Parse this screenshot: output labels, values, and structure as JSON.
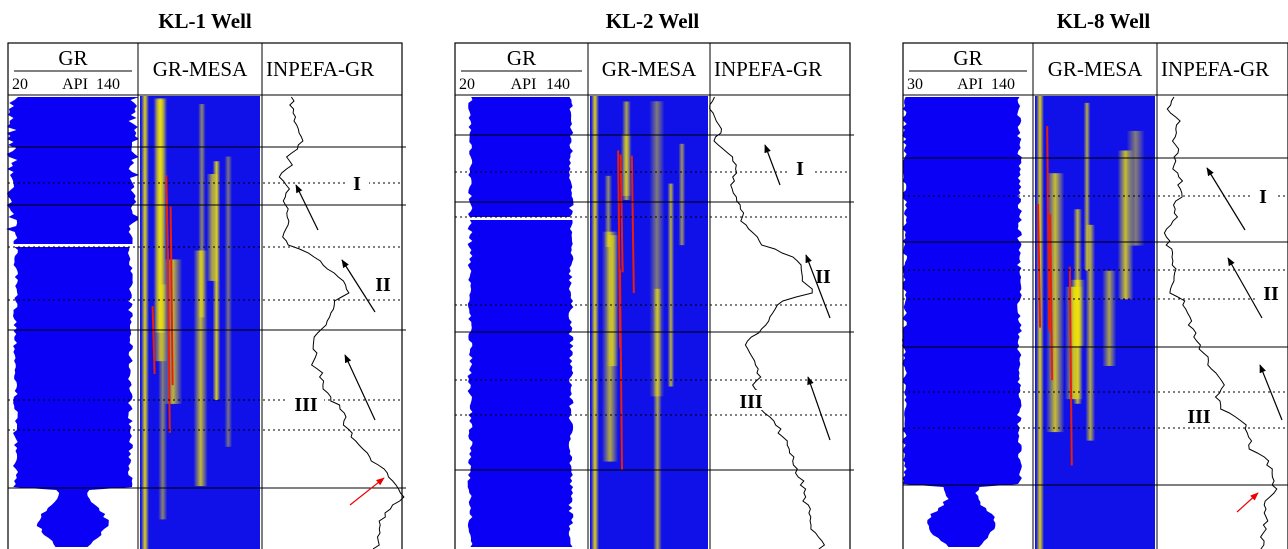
{
  "wells": [
    {
      "title": "KL-1 Well",
      "gr_header": {
        "name": "GR",
        "min": 20,
        "unit": "API",
        "max": 140
      },
      "columns": [
        "GR-MESA",
        "INPEFA-GR"
      ],
      "cycles": [
        "I",
        "II",
        "III"
      ]
    },
    {
      "title": "KL-2 Well",
      "gr_header": {
        "name": "GR",
        "min": 20,
        "unit": "API",
        "max": 140
      },
      "columns": [
        "GR-MESA",
        "INPEFA-GR"
      ],
      "cycles": [
        "I",
        "II",
        "III"
      ]
    },
    {
      "title": "KL-8 Well",
      "gr_header": {
        "name": "GR",
        "min": 30,
        "unit": "API",
        "max": 140
      },
      "columns": [
        "GR-MESA",
        "INPEFA-GR"
      ],
      "cycles": [
        "I",
        "II",
        "III"
      ]
    }
  ]
}
